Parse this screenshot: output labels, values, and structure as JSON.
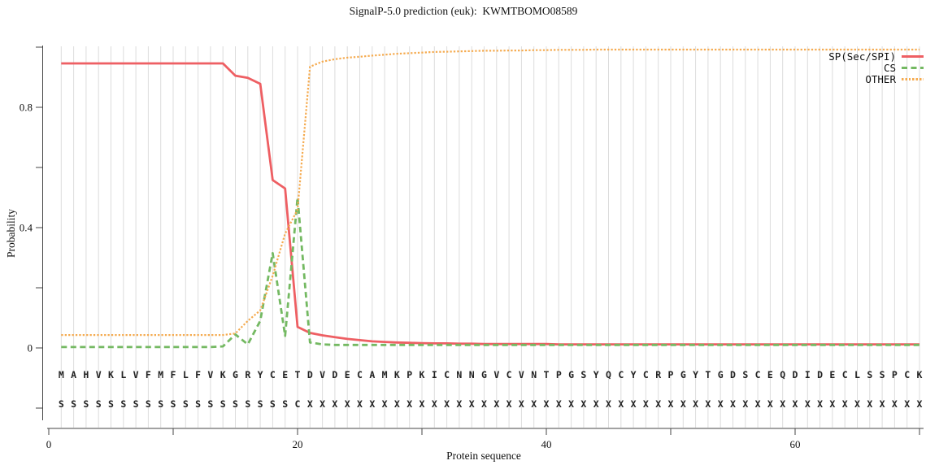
{
  "title": "SignalP-5.0 prediction (euk):  KWMTBOMO08589",
  "legend": [
    {
      "label": "SP(Sec/SPI)",
      "color": "#ee5f63",
      "style": "solid"
    },
    {
      "label": "CS",
      "color": "#74b962",
      "style": "dashed"
    },
    {
      "label": "OTHER",
      "color": "#f5ab50",
      "style": "dotted"
    }
  ],
  "colors": {
    "sp": "#ee5f63",
    "cs": "#74b962",
    "other": "#f5ab50",
    "grid": "#dcdcdc",
    "axis": "#444444"
  },
  "chart_data": {
    "type": "line",
    "title": "SignalP-5.0 prediction (euk):  KWMTBOMO08589",
    "xlabel": "Protein sequence",
    "ylabel": "Probability",
    "xlim": [
      0,
      71
    ],
    "ylim": [
      -0.27,
      1.0
    ],
    "grid": "vertical-per-residue",
    "legend_position": "top-right",
    "x_ticks": [
      {
        "v": 0,
        "label": "0"
      },
      {
        "v": 10,
        "label": ""
      },
      {
        "v": 20,
        "label": "20"
      },
      {
        "v": 30,
        "label": ""
      },
      {
        "v": 40,
        "label": "40"
      },
      {
        "v": 50,
        "label": ""
      },
      {
        "v": 60,
        "label": "60"
      },
      {
        "v": 70,
        "label": ""
      }
    ],
    "y_ticks": [
      {
        "v": -0.2,
        "label": ""
      },
      {
        "v": 0,
        "label": "0"
      },
      {
        "v": 0.2,
        "label": ""
      },
      {
        "v": 0.4,
        "label": "0.4"
      },
      {
        "v": 0.6,
        "label": ""
      },
      {
        "v": 0.8,
        "label": "0.8"
      },
      {
        "v": 1.0,
        "label": ""
      }
    ],
    "x": [
      1,
      2,
      3,
      4,
      5,
      6,
      7,
      8,
      9,
      10,
      11,
      12,
      13,
      14,
      15,
      16,
      17,
      18,
      19,
      20,
      21,
      22,
      23,
      24,
      25,
      26,
      27,
      28,
      29,
      30,
      31,
      32,
      33,
      34,
      35,
      36,
      37,
      38,
      39,
      40,
      41,
      42,
      43,
      44,
      45,
      46,
      47,
      48,
      49,
      50,
      51,
      52,
      53,
      54,
      55,
      56,
      57,
      58,
      59,
      60,
      61,
      62,
      63,
      64,
      65,
      66,
      67,
      68,
      69,
      70
    ],
    "sequence": "MAHVKLVFMFLFVKGRYCETDVDECAMKPKICNNGVCVNTPGSYQCYCRPGYTGDSCEQDIDECLSSPCK",
    "marker_row": "SSSSSSSSSSSSSSSSSSSCXXXXXXXXXXXXXXXXXXXXXXXXXXXXXXXXXXXXXXXXXXXXXXXXXX",
    "series": [
      {
        "name": "SP(Sec/SPI)",
        "color": "#ee5f63",
        "style": "solid",
        "values": [
          0.946,
          0.946,
          0.946,
          0.946,
          0.946,
          0.946,
          0.946,
          0.946,
          0.946,
          0.946,
          0.946,
          0.946,
          0.946,
          0.946,
          0.905,
          0.898,
          0.878,
          0.558,
          0.53,
          0.07,
          0.05,
          0.042,
          0.036,
          0.03,
          0.026,
          0.022,
          0.02,
          0.018,
          0.017,
          0.016,
          0.015,
          0.015,
          0.014,
          0.014,
          0.013,
          0.013,
          0.013,
          0.013,
          0.013,
          0.013,
          0.012,
          0.012,
          0.012,
          0.012,
          0.012,
          0.012,
          0.012,
          0.012,
          0.012,
          0.012,
          0.012,
          0.012,
          0.012,
          0.012,
          0.012,
          0.012,
          0.012,
          0.012,
          0.012,
          0.012,
          0.012,
          0.012,
          0.012,
          0.012,
          0.012,
          0.012,
          0.012,
          0.012,
          0.012,
          0.012
        ]
      },
      {
        "name": "CS",
        "color": "#74b962",
        "style": "dashed",
        "values": [
          0.003,
          0.003,
          0.003,
          0.003,
          0.003,
          0.003,
          0.003,
          0.003,
          0.003,
          0.003,
          0.003,
          0.003,
          0.003,
          0.005,
          0.045,
          0.012,
          0.09,
          0.315,
          0.04,
          0.5,
          0.018,
          0.012,
          0.01,
          0.01,
          0.01,
          0.01,
          0.01,
          0.01,
          0.01,
          0.01,
          0.01,
          0.01,
          0.01,
          0.01,
          0.01,
          0.01,
          0.01,
          0.01,
          0.01,
          0.01,
          0.01,
          0.01,
          0.01,
          0.01,
          0.01,
          0.01,
          0.01,
          0.01,
          0.01,
          0.01,
          0.01,
          0.01,
          0.01,
          0.01,
          0.01,
          0.01,
          0.01,
          0.01,
          0.01,
          0.01,
          0.01,
          0.01,
          0.01,
          0.01,
          0.01,
          0.01,
          0.01,
          0.01,
          0.01,
          0.01
        ]
      },
      {
        "name": "OTHER",
        "color": "#f5ab50",
        "style": "dotted",
        "values": [
          0.043,
          0.043,
          0.043,
          0.043,
          0.043,
          0.043,
          0.043,
          0.043,
          0.043,
          0.043,
          0.043,
          0.043,
          0.043,
          0.043,
          0.048,
          0.09,
          0.125,
          0.24,
          0.38,
          0.46,
          0.935,
          0.952,
          0.96,
          0.965,
          0.968,
          0.972,
          0.975,
          0.978,
          0.98,
          0.982,
          0.984,
          0.985,
          0.986,
          0.987,
          0.988,
          0.988,
          0.989,
          0.989,
          0.99,
          0.99,
          0.991,
          0.991,
          0.991,
          0.992,
          0.992,
          0.992,
          0.992,
          0.992,
          0.992,
          0.992,
          0.992,
          0.992,
          0.992,
          0.992,
          0.992,
          0.992,
          0.992,
          0.992,
          0.992,
          0.992,
          0.992,
          0.992,
          0.992,
          0.992,
          0.992,
          0.992,
          0.992,
          0.992,
          0.992,
          0.992
        ]
      }
    ]
  }
}
